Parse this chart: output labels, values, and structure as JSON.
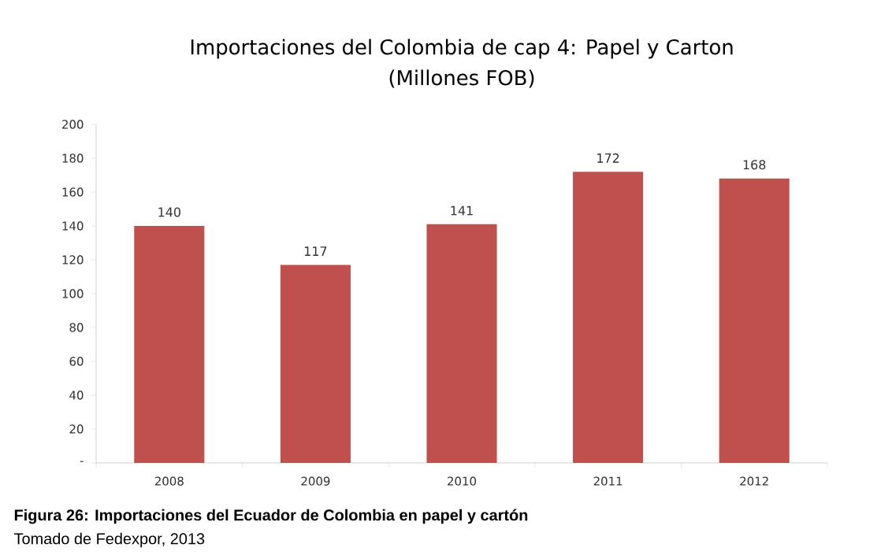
{
  "chart_data": {
    "type": "bar",
    "title": "Importaciones del Colombia de cap 4: Papel y Carton",
    "subtitle": "(Millones FOB)",
    "categories": [
      "2008",
      "2009",
      "2010",
      "2011",
      "2012"
    ],
    "values": [
      140,
      117,
      141,
      172,
      168
    ],
    "color": "#c0504d",
    "data_labels": true,
    "ylim": [
      0,
      200
    ],
    "yticks": [
      {
        "value": 0,
        "label": "-"
      },
      20,
      40,
      60,
      80,
      100,
      120,
      140,
      160,
      180,
      200
    ],
    "grid": false,
    "annotations": [
      "**Figura 26: Importaciones del Ecuador de Colombia en papel y cartón**",
      "Tomado de Fedexpor, 2013"
    ]
  }
}
